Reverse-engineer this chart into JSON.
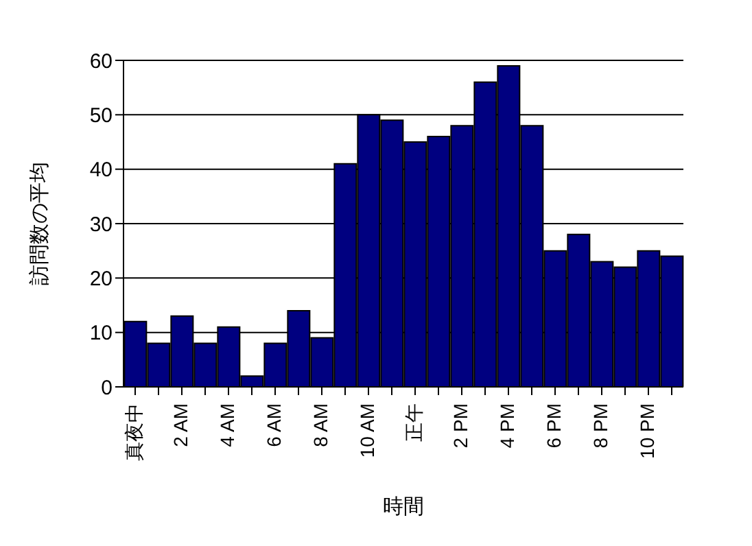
{
  "chart_data": {
    "type": "bar",
    "xlabel": "時間",
    "ylabel": "訪問数の平均",
    "categories": [
      "真夜中",
      null,
      "2 AM",
      null,
      "4 AM",
      null,
      "6 AM",
      null,
      "8 AM",
      null,
      "10 AM",
      null,
      "正午",
      null,
      "2 PM",
      null,
      "4 PM",
      null,
      "6 PM",
      null,
      "8 PM",
      null,
      "10 PM",
      null
    ],
    "values": [
      12,
      8,
      13,
      8,
      11,
      2,
      8,
      14,
      9,
      41,
      50,
      49,
      45,
      46,
      48,
      56,
      59,
      48,
      25,
      28,
      23,
      22,
      25,
      24
    ],
    "color": "#000080",
    "ylim": [
      0,
      60
    ],
    "yticks": [
      0,
      10,
      20,
      30,
      40,
      50,
      60
    ],
    "grid": "y"
  }
}
